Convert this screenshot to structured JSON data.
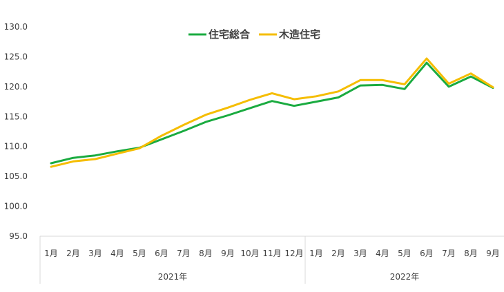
{
  "chart_data": {
    "type": "line",
    "categories": [
      "1月",
      "2月",
      "3月",
      "4月",
      "5月",
      "6月",
      "7月",
      "8月",
      "9月",
      "10月",
      "11月",
      "12月",
      "1月",
      "2月",
      "3月",
      "4月",
      "5月",
      "6月",
      "7月",
      "8月",
      "9月"
    ],
    "groups": [
      {
        "label": "2021年",
        "count": 12
      },
      {
        "label": "2022年",
        "count": 9
      }
    ],
    "series": [
      {
        "name": "住宅総合",
        "color": "#1aab40",
        "values": [
          107.2,
          108.1,
          108.5,
          109.2,
          109.8,
          111.2,
          112.6,
          114.1,
          115.2,
          116.4,
          117.6,
          116.8,
          117.5,
          118.2,
          120.2,
          120.3,
          119.6,
          124.0,
          120.0,
          121.7,
          119.8
        ]
      },
      {
        "name": "木造住宅",
        "color": "#f5bd00",
        "values": [
          106.6,
          107.5,
          107.9,
          108.8,
          109.7,
          111.8,
          113.6,
          115.3,
          116.5,
          117.8,
          118.9,
          117.9,
          118.4,
          119.2,
          121.1,
          121.1,
          120.4,
          124.7,
          120.5,
          122.2,
          119.9
        ]
      }
    ],
    "ylim": [
      95,
      130
    ],
    "yticks": [
      "95.0",
      "100.0",
      "105.0",
      "110.0",
      "115.0",
      "120.0",
      "125.0",
      "130.0"
    ],
    "grid": false,
    "legend_position": "top"
  }
}
